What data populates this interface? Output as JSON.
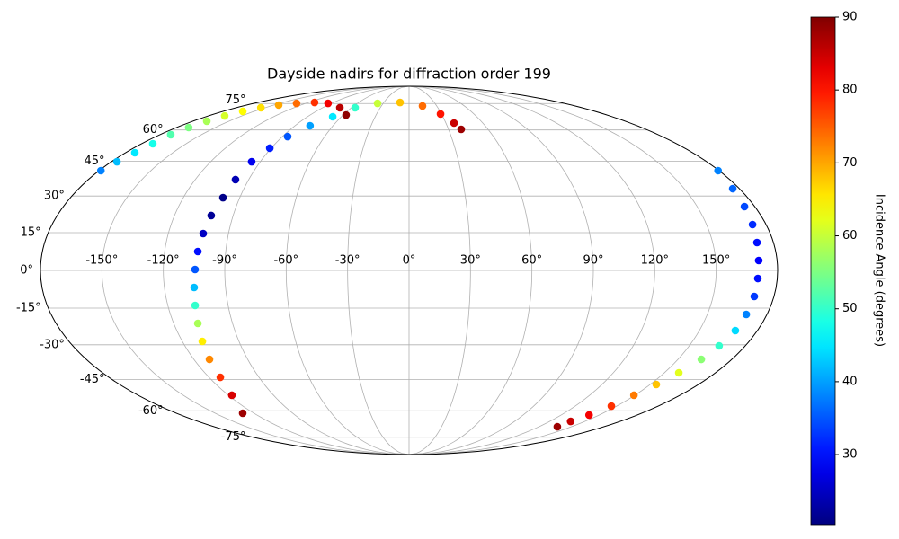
{
  "chart_data": {
    "type": "scatter",
    "projection": "mollweide",
    "title": "Dayside nadirs for diffraction order 199",
    "colorbar_label": "Incidence Angle (degrees)",
    "colormap": "jet",
    "grid": true,
    "xlim": [
      -180,
      180
    ],
    "ylim": [
      -90,
      90
    ],
    "xticks": [
      {
        "value": -150,
        "label": "-150°"
      },
      {
        "value": -120,
        "label": "-120°"
      },
      {
        "value": -90,
        "label": "-90°"
      },
      {
        "value": -60,
        "label": "-60°"
      },
      {
        "value": -30,
        "label": "-30°"
      },
      {
        "value": 0,
        "label": "0°"
      },
      {
        "value": 30,
        "label": "30°"
      },
      {
        "value": 60,
        "label": "60°"
      },
      {
        "value": 90,
        "label": "90°"
      },
      {
        "value": 120,
        "label": "120°"
      },
      {
        "value": 150,
        "label": "150°"
      }
    ],
    "yticks": [
      {
        "value": -75,
        "label": "-75°"
      },
      {
        "value": -60,
        "label": "-60°"
      },
      {
        "value": -45,
        "label": "-45°"
      },
      {
        "value": -30,
        "label": "-30°"
      },
      {
        "value": -15,
        "label": "-15°"
      },
      {
        "value": 0,
        "label": "0°"
      },
      {
        "value": 15,
        "label": "15°"
      },
      {
        "value": 30,
        "label": "30°"
      },
      {
        "value": 45,
        "label": "45°"
      },
      {
        "value": 60,
        "label": "60°"
      },
      {
        "value": 75,
        "label": "75°"
      }
    ],
    "clim": [
      20.4,
      90
    ],
    "cticks": [
      30,
      40,
      50,
      60,
      70,
      80,
      90
    ],
    "x": [
      -179,
      -176.7,
      -174.1,
      -172.4,
      -172.1,
      -170.5,
      -168.4,
      -165.4,
      -161.0,
      -154.4,
      -144.4,
      -130.5,
      -112.5,
      -94.0,
      -72.1,
      -57.3,
      -128.7,
      -117.7,
      -113.2,
      -111.3,
      -109.4,
      -107.7,
      -106.4,
      -105.4,
      -104.5,
      -103.7,
      -102.6,
      -101.2,
      -98.9,
      -97.4,
      -95.2,
      -90.9,
      -86.3,
      -78.1,
      -67.6,
      -56.2,
      -36.5,
      -10.7,
      14.6,
      29.1,
      36.6,
      39.6,
      179.5,
      176.4,
      174.6,
      173.2,
      171.9,
      171.0,
      170.5,
      170.3,
      169.6,
      168.6,
      166.0,
      163.0,
      158.5,
      153.8,
      149.4,
      146.1,
      142.0,
      137.8,
      137.0
    ],
    "values": [
      40.85,
      44.84,
      48.96,
      53.2,
      57.61,
      61.26,
      64.61,
      67.56,
      70.17,
      72.37,
      74.0,
      75.13,
      75.72,
      75.13,
      72.37,
      68.07,
      -61.26,
      -52.33,
      -44.05,
      -36.17,
      -28.57,
      -21.18,
      -13.93,
      -6.77,
      0.36,
      7.48,
      14.65,
      21.92,
      29.31,
      36.94,
      44.84,
      51.07,
      56.69,
      62.19,
      67.07,
      72.37,
      75.13,
      75.72,
      73.44,
      68.61,
      63.62,
      60.33,
      40.85,
      33.09,
      25.59,
      18.27,
      11.06,
      3.92,
      -3.21,
      -10.34,
      -17.54,
      -24.12,
      -30.45,
      -36.17,
      -42.04,
      -47.3,
      -52.33,
      -57.61,
      -62.19,
      -65.6,
      -68.61
    ],
    "color_values": [
      38,
      42,
      45,
      48,
      52,
      55,
      58,
      61,
      64,
      66,
      70,
      74,
      78,
      82,
      86,
      89,
      88,
      84,
      78,
      72,
      65,
      58,
      50,
      42,
      35,
      30,
      25,
      22,
      21,
      24,
      28,
      31,
      35,
      40,
      45,
      50,
      60,
      68,
      74,
      80,
      85,
      88,
      38,
      36,
      34,
      32,
      30,
      29,
      30,
      33,
      38,
      44,
      50,
      56,
      62,
      68,
      73,
      78,
      82,
      85,
      88
    ]
  }
}
